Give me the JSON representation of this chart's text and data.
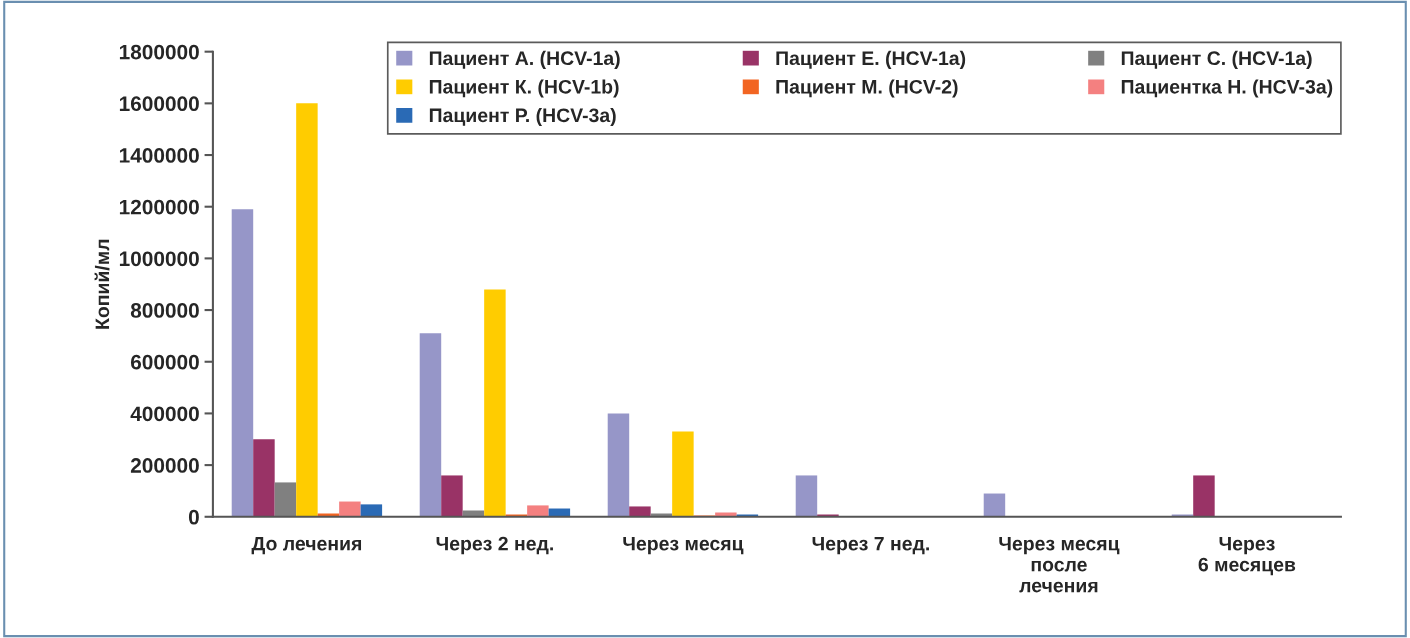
{
  "chart_data": {
    "type": "bar",
    "ylabel": "Копий/мл",
    "categories": [
      "До лечения",
      "Через 2 нед.",
      "Через месяц",
      "Через 7 нед.",
      "Через месяц\nпосле\nлечения",
      "Через\n6 месяцев"
    ],
    "series": [
      {
        "name": "Пациент А. (HCV-1a)",
        "color": "#9696c8",
        "values": [
          1190000,
          710000,
          400000,
          160000,
          90000,
          9000
        ]
      },
      {
        "name": "Пациент Е. (HCV-1a)",
        "color": "#993366",
        "values": [
          300000,
          160000,
          40000,
          9000,
          null,
          160000
        ]
      },
      {
        "name": "Пациент С. (HCV-1a)",
        "color": "#808080",
        "values": [
          133000,
          24000,
          13000,
          null,
          null,
          null
        ]
      },
      {
        "name": "Пациент К. (HCV-1b)",
        "color": "#ffcc00",
        "values": [
          1600000,
          880000,
          330000,
          null,
          null,
          null
        ]
      },
      {
        "name": "Пациент М. (HCV-2)",
        "color": "#f26522",
        "values": [
          13000,
          9000,
          5000,
          null,
          null,
          null
        ]
      },
      {
        "name": "Пациентка Н. (HCV-3a)",
        "color": "#f48080",
        "values": [
          59000,
          44000,
          17000,
          null,
          null,
          null
        ]
      },
      {
        "name": "Пациент Р. (HCV-3a)",
        "color": "#2a6ab5",
        "values": [
          48000,
          32000,
          9000,
          null,
          null,
          null
        ]
      }
    ],
    "ylim": [
      0,
      1800000
    ],
    "yticks": [
      0,
      200000,
      400000,
      600000,
      800000,
      1000000,
      1200000,
      1400000,
      1600000,
      1800000
    ],
    "grid": false,
    "legend": "top right"
  }
}
